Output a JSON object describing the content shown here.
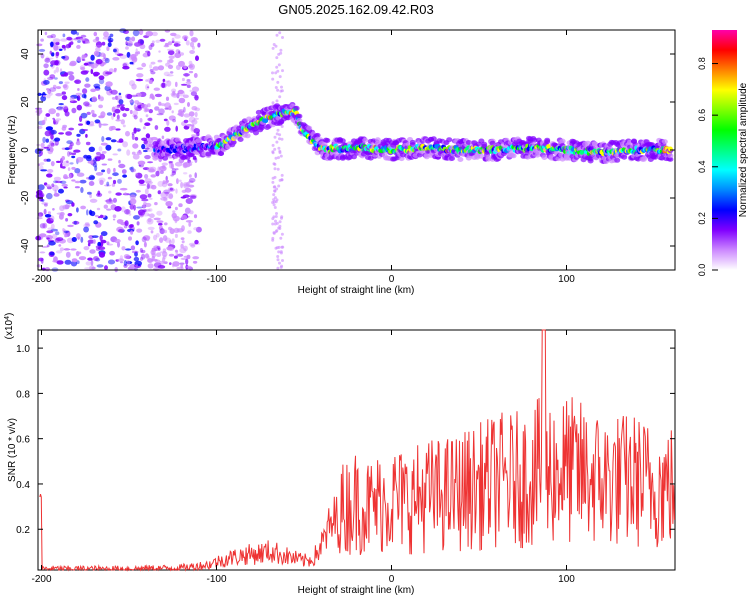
{
  "chart_data": [
    {
      "type": "heatmap",
      "title": "GN05.2025.162.09.42.R03",
      "xlabel": "Height of straight line (km)",
      "ylabel": "Frequency (Hz)",
      "xlim": [
        -202,
        162
      ],
      "ylim": [
        -50,
        50
      ],
      "xticks": [
        "-200",
        "-100",
        "0",
        "100"
      ],
      "yticks": [
        "40",
        "20",
        "0",
        "-20",
        "-40"
      ],
      "colorbar": {
        "label": "Normalized spectral amplitude",
        "range": [
          0.0,
          0.93
        ],
        "ticks": [
          "0.0",
          "0.2",
          "0.4",
          "0.6",
          "0.8"
        ],
        "colors": [
          "#ffffff",
          "#cc88ff",
          "#8000ff",
          "#0000ff",
          "#0088ff",
          "#00ffff",
          "#00ff80",
          "#00ff00",
          "#80ff00",
          "#ffff00",
          "#ff8000",
          "#ff0000",
          "#ff00aa"
        ]
      },
      "ridge": {
        "x": [
          -135,
          -110,
          -100,
          -95,
          -85,
          -75,
          -65,
          -55,
          -52,
          -48,
          -44,
          -40,
          -36,
          -32,
          -28,
          -20,
          0,
          20,
          40,
          60,
          80,
          100,
          120,
          140,
          160
        ],
        "y": [
          0,
          1,
          2,
          3,
          8,
          12,
          15,
          16,
          10,
          6,
          3,
          1,
          0,
          1,
          0,
          1,
          0,
          1,
          0,
          0,
          1,
          0,
          -1,
          0,
          0
        ]
      },
      "grid": false
    },
    {
      "type": "line",
      "title": "",
      "xlabel": "Height of straight line (km)",
      "ylabel": "SNR (10 * v/v)",
      "y_multiplier": "(x10",
      "y_exponent": "4",
      "xlim": [
        -202,
        162
      ],
      "ylim": [
        0.02,
        1.08
      ],
      "xticks": [
        "-200",
        "-100",
        "0",
        "100"
      ],
      "yticks": [
        "1.0",
        "0.8",
        "0.6",
        "0.4",
        "0.2"
      ],
      "series": [
        {
          "color": "#ee3333",
          "x": [
            -200,
            -150,
            -120,
            -105,
            -95,
            -85,
            -75,
            -70,
            -65,
            -58,
            -50,
            -45,
            -40,
            -35,
            -30,
            -25,
            -20,
            -15,
            -10,
            -5,
            0,
            10,
            20,
            30,
            40,
            50,
            60,
            70,
            80,
            87,
            90,
            100,
            110,
            120,
            130,
            140,
            150,
            160
          ],
          "y": [
            0.03,
            0.03,
            0.035,
            0.05,
            0.08,
            0.1,
            0.11,
            0.12,
            0.11,
            0.09,
            0.07,
            0.08,
            0.15,
            0.25,
            0.3,
            0.33,
            0.35,
            0.32,
            0.33,
            0.35,
            0.36,
            0.35,
            0.38,
            0.38,
            0.4,
            0.42,
            0.45,
            0.45,
            0.47,
            0.5,
            0.5,
            0.5,
            0.48,
            0.45,
            0.45,
            0.45,
            0.42,
            0.42
          ]
        }
      ]
    }
  ]
}
